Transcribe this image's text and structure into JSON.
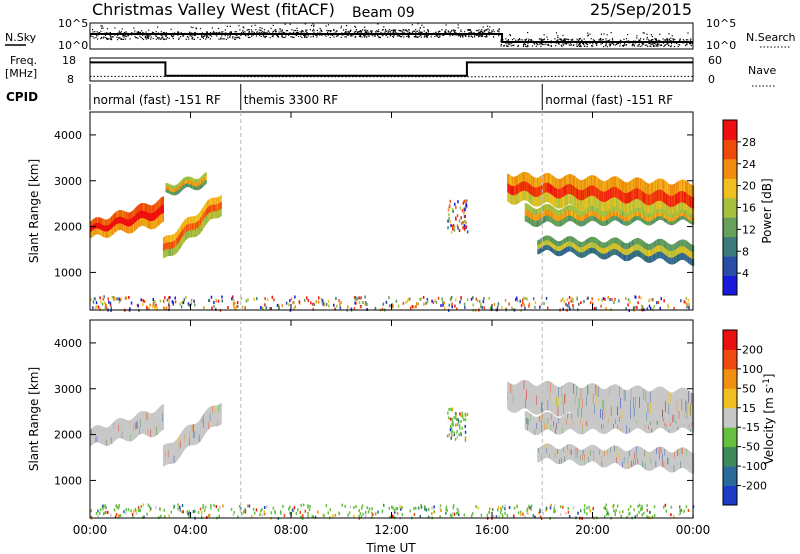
{
  "header": {
    "station": "Christmas Valley West (fitACF)",
    "beam": "Beam 09",
    "date": "25/Sep/2015"
  },
  "noise_panel": {
    "left_label": "N.Sky",
    "right_label": "N.Search",
    "yticks_left": [
      "10^5",
      "10^0"
    ],
    "yticks_right": [
      "10^5",
      "10^0"
    ]
  },
  "freq_panel": {
    "left_label_1": "Freq.",
    "left_label_2": "[MHz]",
    "right_label": "Nave",
    "yticks_left": [
      "18",
      "8"
    ],
    "yticks_right": [
      "60",
      "0"
    ],
    "freq_steps": [
      {
        "t_start": 0,
        "t_end": 3.0,
        "mhz": 16.5
      },
      {
        "t_start": 3.0,
        "t_end": 15.0,
        "mhz": 9.0
      },
      {
        "t_start": 15.0,
        "t_end": 24,
        "mhz": 16.5
      }
    ],
    "nave_steps": [
      {
        "t_start": 0,
        "t_end": 6.0,
        "value": 12
      },
      {
        "t_start": 6.0,
        "t_end": 18.0,
        "value": 11
      },
      {
        "t_start": 18.0,
        "t_end": 24,
        "value": 12
      }
    ]
  },
  "cpid": {
    "label": "CPID",
    "segments": [
      {
        "t_start": 0,
        "t_end": 6.0,
        "text": "normal (fast) -151 RF"
      },
      {
        "t_start": 6.0,
        "t_end": 18.0,
        "text": "themis 3300 RF"
      },
      {
        "t_start": 18.0,
        "t_end": 24,
        "text": "normal (fast) -151 RF"
      }
    ]
  },
  "time_axis": {
    "label": "Time UT",
    "ticks": [
      "00:00",
      "04:00",
      "08:00",
      "12:00",
      "16:00",
      "20:00",
      "00:00"
    ]
  },
  "colors": {
    "power_scale": [
      "#1a1adc",
      "#2a4ea8",
      "#3d7a7a",
      "#66a05a",
      "#a8c040",
      "#f0c020",
      "#f08c10",
      "#f04a0a",
      "#ee1010"
    ],
    "velocity_scale": [
      "#1e3cc8",
      "#2a6a9a",
      "#3c8a5c",
      "#66c040",
      "#c8c8c8",
      "#f0c020",
      "#f09010",
      "#f04a10",
      "#e81010"
    ],
    "ground_scatter": "#c8c8c8"
  },
  "chart_data": [
    {
      "type": "heatmap",
      "title": "",
      "xlabel": "",
      "ylabel": "Slant Range [km]",
      "xlim": [
        0,
        24
      ],
      "ylim": [
        180,
        4500
      ],
      "yticks": [
        "4000",
        "3000",
        "2000",
        "1000"
      ],
      "colorbar": {
        "label": "Power [dB]",
        "ticks": [
          "28",
          "24",
          "20",
          "16",
          "12",
          "8",
          "4"
        ],
        "range": [
          0,
          32
        ]
      },
      "echo_bands": [
        {
          "t_start": 0.0,
          "t_end": 2.9,
          "r_start_bottom": 1750,
          "r_end_bottom": 2050,
          "r_start_top": 2100,
          "r_end_top": 2600,
          "value": 28
        },
        {
          "t_start": 2.9,
          "t_end": 5.2,
          "r_start_bottom": 1250,
          "r_end_bottom": 2300,
          "r_start_top": 1700,
          "r_end_top": 2750,
          "value": 22
        },
        {
          "t_start": 3.0,
          "t_end": 4.6,
          "r_start_bottom": 2700,
          "r_end_bottom": 2900,
          "r_start_top": 2900,
          "r_end_top": 3150,
          "value": 18
        },
        {
          "t_start": 16.6,
          "t_end": 24.0,
          "r_start_bottom": 2550,
          "r_end_bottom": 2200,
          "r_start_top": 3150,
          "r_end_top": 2950,
          "value": 24
        },
        {
          "t_start": 17.3,
          "t_end": 24.0,
          "r_start_bottom": 2050,
          "r_end_bottom": 2100,
          "r_start_top": 2450,
          "r_end_top": 2300,
          "value": 18
        },
        {
          "t_start": 17.8,
          "t_end": 24.0,
          "r_start_bottom": 1450,
          "r_end_bottom": 1200,
          "r_start_top": 1750,
          "r_end_top": 1650,
          "value": 14
        }
      ]
    },
    {
      "type": "heatmap",
      "title": "",
      "xlabel": "Time UT",
      "ylabel": "Slant Range [km]",
      "xlim": [
        0,
        24
      ],
      "ylim": [
        180,
        4500
      ],
      "yticks": [
        "4000",
        "3000",
        "2000",
        "1000"
      ],
      "colorbar": {
        "label": "Velocity [m s-1]",
        "ticks": [
          "200",
          "100",
          "50",
          "15",
          "-15",
          "-50",
          "-100",
          "-200"
        ],
        "range": [
          -250,
          250
        ]
      },
      "echo_bands": [
        {
          "t_start": 0.0,
          "t_end": 2.9,
          "r_start_bottom": 1750,
          "r_end_bottom": 2050,
          "r_start_top": 2100,
          "r_end_top": 2600,
          "value": 0
        },
        {
          "t_start": 2.9,
          "t_end": 5.2,
          "r_start_bottom": 1250,
          "r_end_bottom": 2300,
          "r_start_top": 1700,
          "r_end_top": 2750,
          "value": 0
        },
        {
          "t_start": 16.6,
          "t_end": 24.0,
          "r_start_bottom": 2550,
          "r_end_bottom": 2200,
          "r_start_top": 3150,
          "r_end_top": 2950,
          "value": 0
        },
        {
          "t_start": 17.3,
          "t_end": 24.0,
          "r_start_bottom": 2050,
          "r_end_bottom": 2100,
          "r_start_top": 2450,
          "r_end_top": 2300,
          "value": 0
        },
        {
          "t_start": 17.8,
          "t_end": 24.0,
          "r_start_bottom": 1450,
          "r_end_bottom": 1200,
          "r_start_top": 1750,
          "r_end_top": 1650,
          "value": 0
        }
      ]
    }
  ]
}
